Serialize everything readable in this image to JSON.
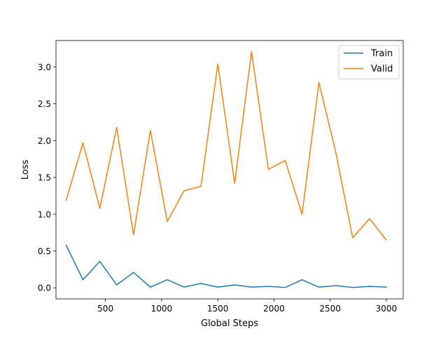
{
  "chart_data": {
    "type": "line",
    "title": "",
    "xlabel": "Global Steps",
    "ylabel": "Loss",
    "xlim": [
      60,
      3150
    ],
    "ylim": [
      -0.15,
      3.36
    ],
    "xticks": [
      500,
      1000,
      1500,
      2000,
      2500,
      3000
    ],
    "yticks": [
      0.0,
      0.5,
      1.0,
      1.5,
      2.0,
      2.5,
      3.0
    ],
    "xtick_labels": [
      "500",
      "1000",
      "1500",
      "2000",
      "2500",
      "3000"
    ],
    "ytick_labels": [
      "0.0",
      "0.5",
      "1.0",
      "1.5",
      "2.0",
      "2.5",
      "3.0"
    ],
    "grid": false,
    "legend_position": "top-right",
    "x": [
      150,
      300,
      450,
      600,
      750,
      900,
      1050,
      1200,
      1350,
      1500,
      1650,
      1800,
      1950,
      2100,
      2250,
      2400,
      2550,
      2700,
      2850,
      3000
    ],
    "series": [
      {
        "name": "Train",
        "color": "#1f77b4",
        "values": [
          0.58,
          0.11,
          0.36,
          0.04,
          0.21,
          0.01,
          0.11,
          0.01,
          0.06,
          0.01,
          0.04,
          0.01,
          0.02,
          0.005,
          0.11,
          0.01,
          0.03,
          0.005,
          0.02,
          0.01
        ]
      },
      {
        "name": "Valid",
        "color": "#ff7f0e",
        "values": [
          1.19,
          1.97,
          1.08,
          2.18,
          0.72,
          2.14,
          0.9,
          1.32,
          1.38,
          3.04,
          1.42,
          3.21,
          1.61,
          1.73,
          1.0,
          2.79,
          1.84,
          0.68,
          0.94,
          0.65
        ]
      }
    ]
  }
}
